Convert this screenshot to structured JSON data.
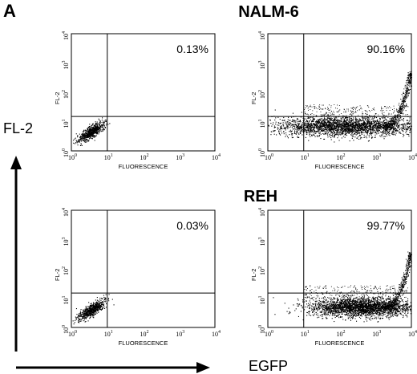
{
  "figure": {
    "panel_label": "A",
    "global_y_label": "FL-2",
    "global_x_label": "EGFP",
    "group_titles": [
      "NALM-6",
      "REH"
    ]
  },
  "chart_data": [
    {
      "type": "scatter",
      "group": "NALM-6",
      "title": "",
      "xlabel": "FLUORESCENCE",
      "ylabel": "FL-2",
      "xscale": "log",
      "yscale": "log",
      "xlim": [
        1,
        10000
      ],
      "ylim": [
        1,
        10000
      ],
      "xticks": [
        "10^0",
        "10^1",
        "10^2",
        "10^3",
        "10^4"
      ],
      "yticks": [
        "10^0",
        "10^1",
        "10^2",
        "10^3",
        "10^4"
      ],
      "quadrant_gate": {
        "x": 10,
        "y": 15
      },
      "annotation": "0.13%",
      "population": {
        "x_center": 3.5,
        "y_center": 4.5,
        "x_spread_decades": 0.3,
        "y_spread_decades": 0.3,
        "shape": "small cluster"
      }
    },
    {
      "type": "scatter",
      "group": "NALM-6",
      "title": "",
      "xlabel": "FLUORESCENCE",
      "ylabel": "FL-2",
      "xscale": "log",
      "yscale": "log",
      "xlim": [
        1,
        10000
      ],
      "ylim": [
        1,
        10000
      ],
      "xticks": [
        "10^0",
        "10^1",
        "10^2",
        "10^3",
        "10^4"
      ],
      "yticks": [
        "10^0",
        "10^1",
        "10^2",
        "10^3",
        "10^4"
      ],
      "quadrant_gate": {
        "x": 10,
        "y": 15
      },
      "annotation": "90.16%",
      "population": {
        "x_center": 150,
        "y_center": 7,
        "x_spread_decades": 2.2,
        "y_spread_decades": 0.35,
        "shape": "horizontal band with diagonal tail"
      }
    },
    {
      "type": "scatter",
      "group": "REH",
      "title": "",
      "xlabel": "FLUORESCENCE",
      "ylabel": "FL-2",
      "xscale": "log",
      "yscale": "log",
      "xlim": [
        1,
        10000
      ],
      "ylim": [
        1,
        10000
      ],
      "xticks": [
        "10^0",
        "10^1",
        "10^2",
        "10^3",
        "10^4"
      ],
      "yticks": [
        "10^0",
        "10^1",
        "10^2",
        "10^3",
        "10^4"
      ],
      "quadrant_gate": {
        "x": 10,
        "y": 15
      },
      "annotation": "0.03%",
      "population": {
        "x_center": 3.5,
        "y_center": 4,
        "x_spread_decades": 0.3,
        "y_spread_decades": 0.3,
        "shape": "small cluster"
      }
    },
    {
      "type": "scatter",
      "group": "REH",
      "title": "",
      "xlabel": "FLUORESCENCE",
      "ylabel": "FL-2",
      "xscale": "log",
      "yscale": "log",
      "xlim": [
        1,
        10000
      ],
      "ylim": [
        1,
        10000
      ],
      "xticks": [
        "10^0",
        "10^1",
        "10^2",
        "10^3",
        "10^4"
      ],
      "yticks": [
        "10^0",
        "10^1",
        "10^2",
        "10^3",
        "10^4"
      ],
      "quadrant_gate": {
        "x": 10,
        "y": 15
      },
      "annotation": "99.77%",
      "population": {
        "x_center": 400,
        "y_center": 5,
        "x_spread_decades": 1.6,
        "y_spread_decades": 0.35,
        "shape": "dense band with diagonal tail"
      }
    }
  ]
}
